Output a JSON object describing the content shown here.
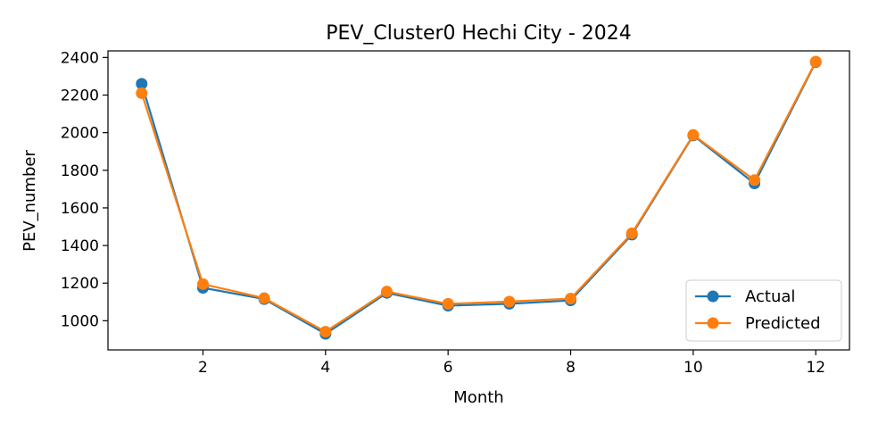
{
  "chart_data": {
    "type": "line",
    "title": "PEV_Cluster0 Hechi City - 2024",
    "xlabel": "Month",
    "ylabel": "PEV_number",
    "x": [
      1,
      2,
      3,
      4,
      5,
      6,
      7,
      8,
      9,
      10,
      11,
      12
    ],
    "xlim": [
      0.45,
      12.55
    ],
    "ylim": [
      845,
      2435
    ],
    "xticks": [
      2,
      4,
      6,
      8,
      10,
      12
    ],
    "yticks": [
      1000,
      1200,
      1400,
      1600,
      1800,
      2000,
      2200,
      2400
    ],
    "grid": false,
    "legend_position": "lower right",
    "series": [
      {
        "name": "Actual",
        "color": "#1f77b4",
        "marker": "circle",
        "values": [
          2260,
          1175,
          1115,
          930,
          1148,
          1080,
          1090,
          1108,
          1458,
          1985,
          1730,
          2375
        ]
      },
      {
        "name": "Predicted",
        "color": "#ff7f0e",
        "marker": "circle",
        "values": [
          2210,
          1195,
          1120,
          942,
          1155,
          1090,
          1102,
          1118,
          1465,
          1988,
          1748,
          2378
        ]
      }
    ]
  }
}
